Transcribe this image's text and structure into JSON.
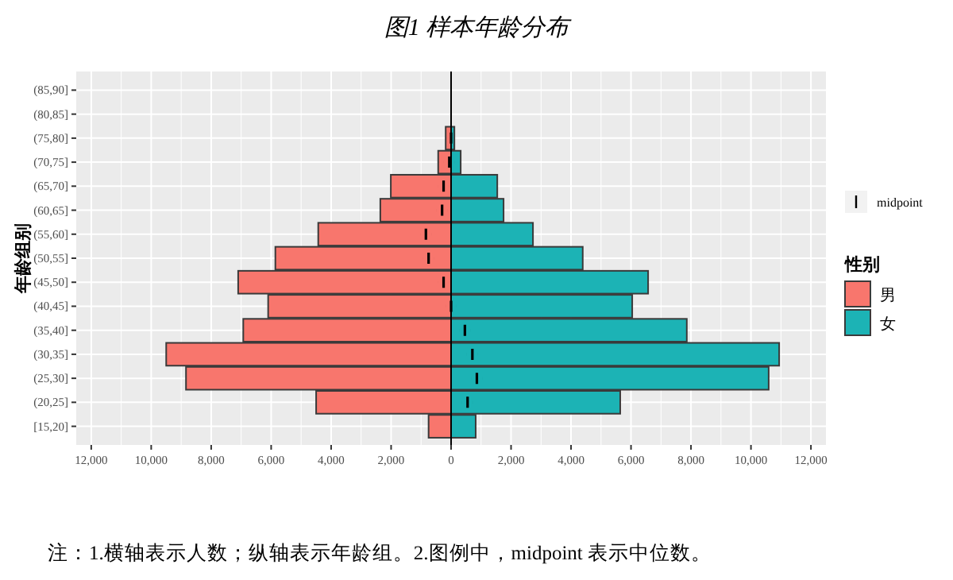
{
  "chart_data": {
    "type": "bar",
    "orientation": "horizontal",
    "stacked": true,
    "title": "图1 样本年龄分布",
    "ylabel": "年龄组别",
    "legend_title": "性别",
    "legend": "right",
    "grid": true,
    "categories": [
      "(85,90]",
      "(80,85]",
      "(75,80]",
      "(70,75]",
      "(65,70]",
      "(60,65]",
      "(55,60]",
      "(50,55]",
      "(45,50]",
      "(40,45]",
      "(35,40]",
      "(30,35]",
      "(25,30]",
      "(20,25]",
      "[15,20]"
    ],
    "xlim": [
      -12500,
      12500
    ],
    "xticks": [
      {
        "value": -12000,
        "label": "12,000"
      },
      {
        "value": -10000,
        "label": "10,000"
      },
      {
        "value": -8000,
        "label": "8,000"
      },
      {
        "value": -6000,
        "label": "6,000"
      },
      {
        "value": -4000,
        "label": "4,000"
      },
      {
        "value": -2000,
        "label": "2,000"
      },
      0,
      {
        "value": 2000,
        "label": "2,000"
      },
      {
        "value": 4000,
        "label": "4,000"
      },
      {
        "value": 6000,
        "label": "6,000"
      },
      {
        "value": 8000,
        "label": "8,000"
      },
      {
        "value": 10000,
        "label": "10,000"
      },
      {
        "value": 12000,
        "label": "12,000"
      }
    ],
    "series": [
      {
        "name": "男",
        "color": "#f8766d",
        "values": [
          null,
          null,
          -180,
          -430,
          -2010,
          -2360,
          -4430,
          -5860,
          -7100,
          -6100,
          -6930,
          -9500,
          -8840,
          -4500,
          -750
        ]
      },
      {
        "name": "女",
        "color": "#1cb3b5",
        "values": [
          null,
          null,
          110,
          320,
          1540,
          1750,
          2730,
          4390,
          6570,
          6040,
          7860,
          10940,
          10590,
          5640,
          820
        ]
      },
      {
        "name": "midpoint",
        "type": "scatter",
        "color": "#000000",
        "values": [
          null,
          null,
          0,
          -60,
          -250,
          -300,
          -840,
          -750,
          -250,
          0,
          460,
          710,
          860,
          550,
          null
        ]
      }
    ],
    "ref_lines": [
      {
        "axis": "x",
        "value": 0,
        "color": "#000000"
      }
    ],
    "annotations": [
      "注：1.横轴表示人数；纵轴表示年龄组。2.图例中，midpoint 表示中位数。"
    ]
  }
}
